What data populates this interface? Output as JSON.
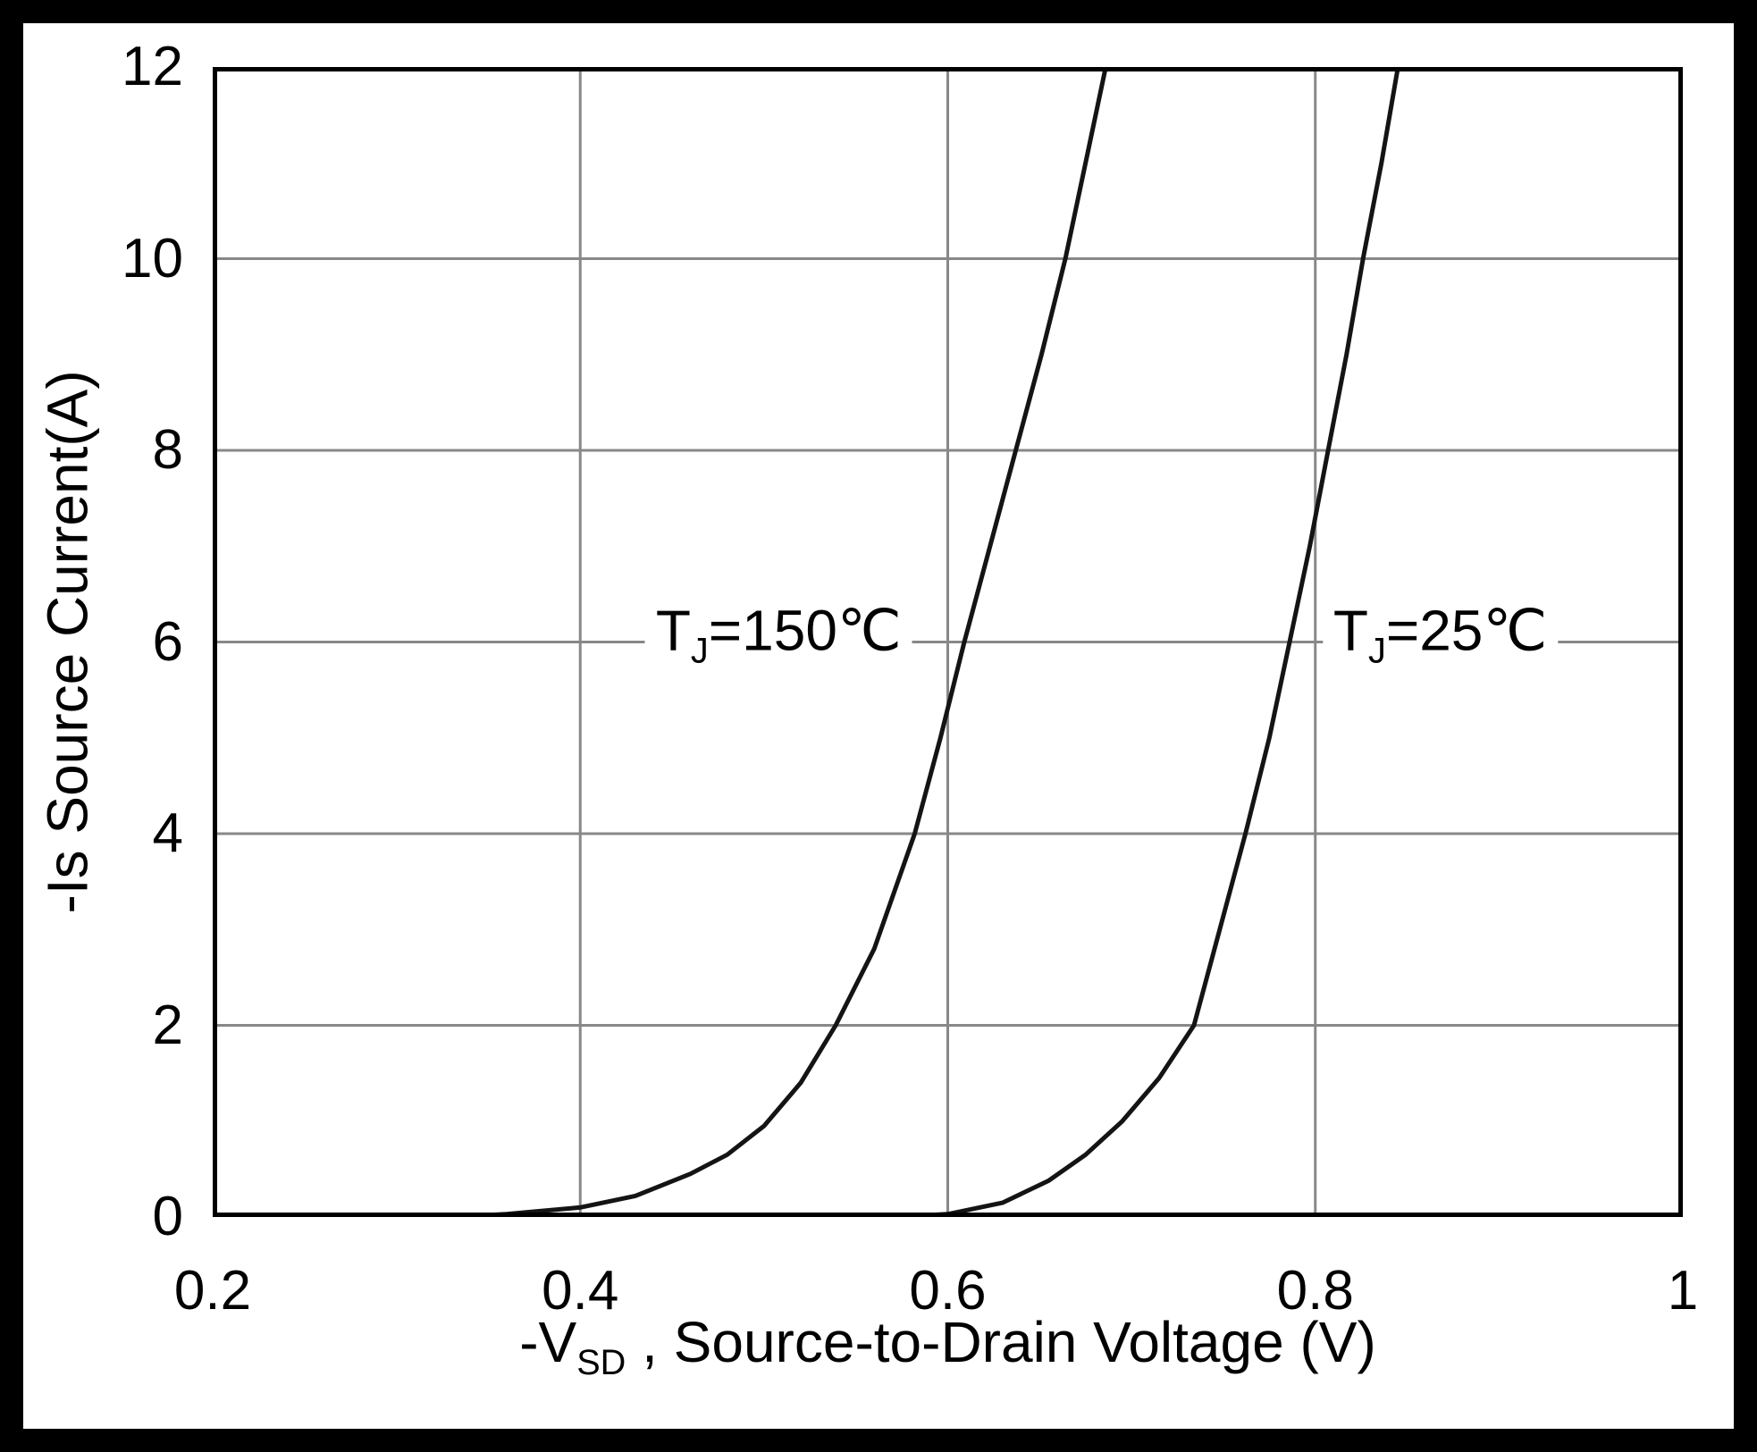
{
  "chart_data": {
    "type": "line",
    "title": "",
    "xlabel": {
      "prefix": "-V",
      "sub": "SD",
      "rest": " , Source-to-Drain Voltage (V)"
    },
    "ylabel": {
      "prefix": "-Is",
      "sub": "",
      "rest": " Source Current(A)"
    },
    "xlim": [
      0.2,
      1.0
    ],
    "ylim": [
      0,
      12
    ],
    "x_ticks": [
      0.2,
      0.4,
      0.6,
      0.8,
      1
    ],
    "x_tick_labels": [
      "0.2",
      "0.4",
      "0.6",
      "0.8",
      "1"
    ],
    "y_ticks": [
      0,
      2,
      4,
      6,
      8,
      10,
      12
    ],
    "y_tick_labels": [
      "0",
      "2",
      "4",
      "6",
      "8",
      "10",
      "12"
    ],
    "grid": true,
    "legend_position": "none",
    "series": [
      {
        "id": "tj150",
        "label": "TJ=150℃",
        "points": [
          [
            0.2,
            0
          ],
          [
            0.33,
            0
          ],
          [
            0.36,
            0.03
          ],
          [
            0.4,
            0.1
          ],
          [
            0.43,
            0.22
          ],
          [
            0.46,
            0.45
          ],
          [
            0.48,
            0.65
          ],
          [
            0.5,
            0.95
          ],
          [
            0.52,
            1.4
          ],
          [
            0.539,
            2.0
          ],
          [
            0.56,
            2.8
          ],
          [
            0.582,
            4.0
          ],
          [
            0.596,
            5.0
          ],
          [
            0.609,
            6.0
          ],
          [
            0.623,
            7.0
          ],
          [
            0.637,
            8.0
          ],
          [
            0.651,
            9.0
          ],
          [
            0.664,
            10.0
          ],
          [
            0.675,
            11.0
          ],
          [
            0.686,
            12.0
          ]
        ]
      },
      {
        "id": "tj25",
        "label": "TJ=25℃",
        "points": [
          [
            0.2,
            0
          ],
          [
            0.57,
            0
          ],
          [
            0.6,
            0.03
          ],
          [
            0.63,
            0.15
          ],
          [
            0.655,
            0.38
          ],
          [
            0.675,
            0.65
          ],
          [
            0.695,
            1.0
          ],
          [
            0.715,
            1.45
          ],
          [
            0.734,
            2.0
          ],
          [
            0.748,
            3.0
          ],
          [
            0.762,
            4.0
          ],
          [
            0.775,
            5.0
          ],
          [
            0.786,
            6.0
          ],
          [
            0.797,
            7.0
          ],
          [
            0.807,
            8.0
          ],
          [
            0.817,
            9.0
          ],
          [
            0.826,
            10.0
          ],
          [
            0.836,
            11.0
          ],
          [
            0.845,
            12.0
          ]
        ]
      }
    ],
    "annotations": [
      {
        "prefix": "T",
        "sub": "J",
        "text": "=150℃",
        "x": 0.508,
        "y": 6.0
      },
      {
        "prefix": "T",
        "sub": "J",
        "text": "=25℃",
        "x": 0.868,
        "y": 6.0
      }
    ],
    "colors": {
      "line": "#141414",
      "grid": "#888888",
      "frame": "#000000",
      "background": "#ffffff",
      "page_border": "#000000"
    }
  }
}
